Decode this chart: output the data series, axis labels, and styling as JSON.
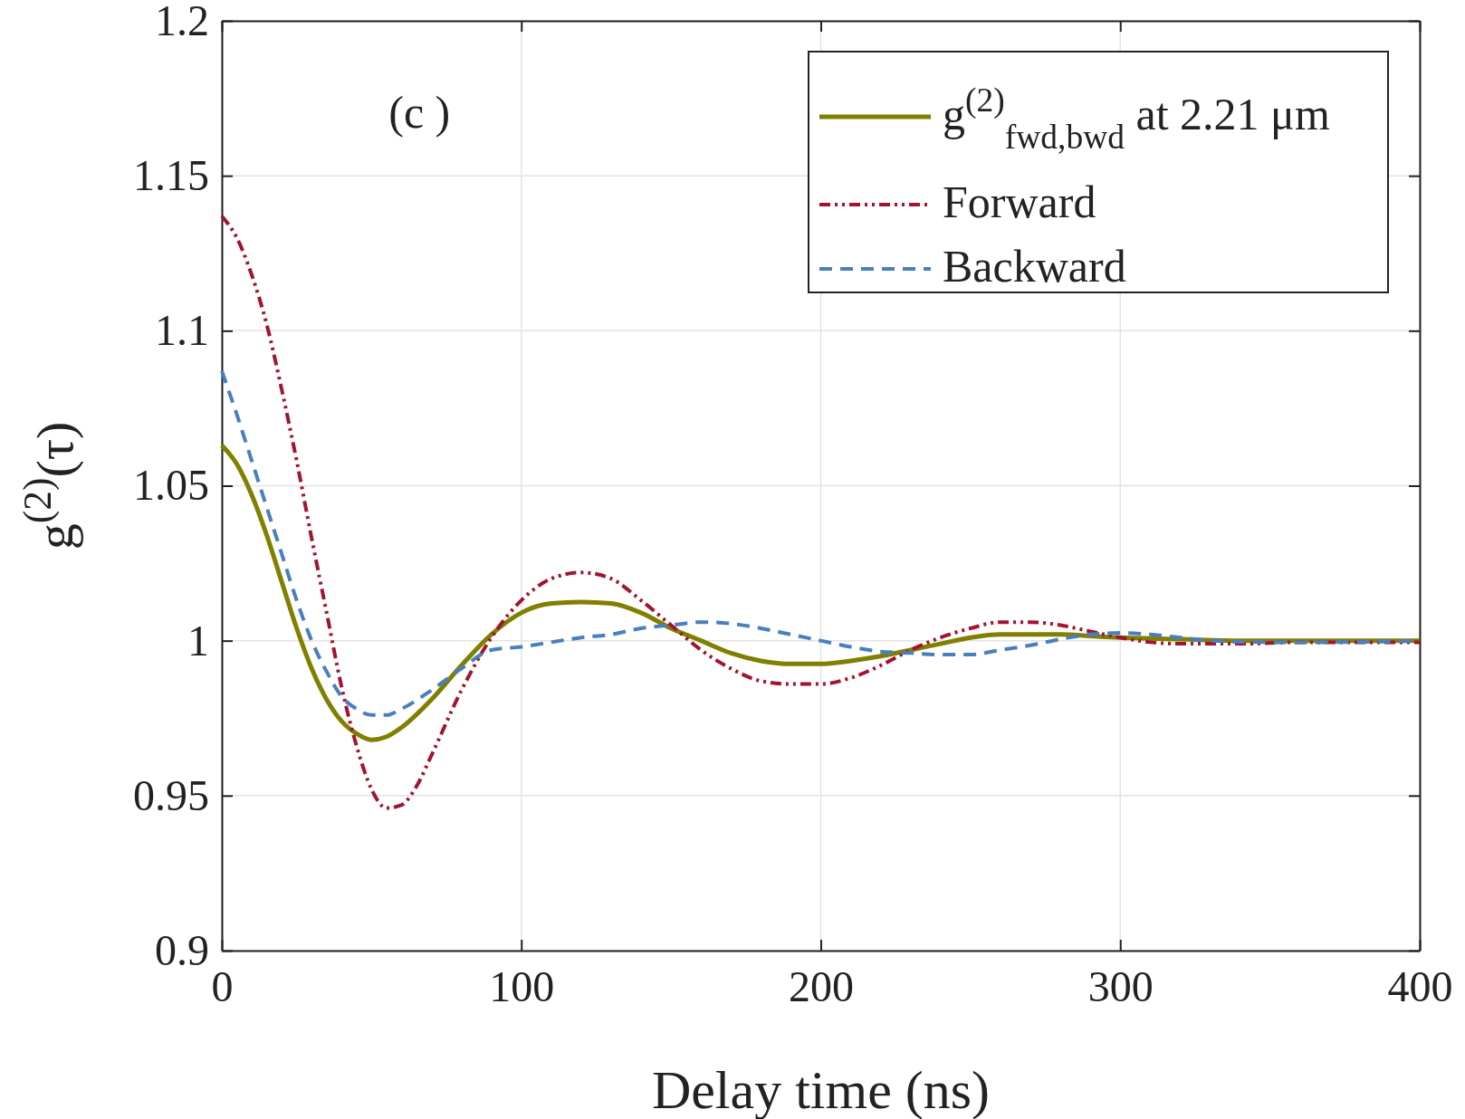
{
  "chart_data": {
    "type": "line",
    "xlabel": "Delay time (ns)",
    "ylabel": "g$^{(2)}$(τ)",
    "annotations": [
      "(c )"
    ],
    "xlim": [
      0,
      400
    ],
    "xticks": [
      0,
      100,
      200,
      300,
      400
    ],
    "ylim": [
      0.9,
      1.2
    ],
    "yticks": [
      0.9,
      0.95,
      1,
      1.05,
      1.1,
      1.15,
      1.2
    ],
    "grid": true,
    "legend": "top right",
    "series": [
      {
        "name": "g$^{(2)}$$_{fwd,bwd}$ at 2.21 μm",
        "color": "#808000",
        "line_style": "solid",
        "x": [
          0,
          5,
          10,
          15,
          20,
          25,
          30,
          35,
          40,
          45,
          50,
          55,
          60,
          70,
          80,
          90,
          100,
          110,
          120,
          130,
          140,
          150,
          160,
          170,
          180,
          190,
          200,
          210,
          220,
          230,
          240,
          250,
          260,
          270,
          280,
          290,
          300,
          320,
          340,
          370,
          400
        ],
        "values": [
          1.063,
          1.057,
          1.047,
          1.034,
          1.019,
          1.004,
          0.991,
          0.981,
          0.974,
          0.97,
          0.968,
          0.969,
          0.972,
          0.981,
          0.992,
          1.002,
          1.009,
          1.012,
          1.0125,
          1.012,
          1.009,
          1.004,
          1.0,
          0.996,
          0.9935,
          0.9925,
          0.9925,
          0.9935,
          0.995,
          0.997,
          0.999,
          1.001,
          1.002,
          1.002,
          1.002,
          1.0015,
          1.001,
          1.0005,
          1.0,
          1.0,
          1.0
        ]
      },
      {
        "name": "Forward",
        "color": "#a2142f",
        "line_style": "dashdot",
        "x": [
          0,
          5,
          10,
          15,
          20,
          25,
          30,
          35,
          40,
          45,
          50,
          55,
          60,
          65,
          70,
          80,
          90,
          100,
          110,
          120,
          130,
          140,
          150,
          160,
          170,
          180,
          190,
          200,
          210,
          220,
          230,
          240,
          250,
          260,
          270,
          280,
          290,
          300,
          310,
          320,
          340,
          360,
          400
        ],
        "values": [
          1.137,
          1.13,
          1.118,
          1.102,
          1.081,
          1.058,
          1.033,
          1.009,
          0.985,
          0.966,
          0.952,
          0.946,
          0.947,
          0.953,
          0.963,
          0.984,
          1.001,
          1.013,
          1.02,
          1.022,
          1.02,
          1.013,
          1.005,
          0.997,
          0.991,
          0.987,
          0.986,
          0.986,
          0.988,
          0.992,
          0.997,
          1.001,
          1.004,
          1.006,
          1.006,
          1.005,
          1.003,
          1.001,
          0.9995,
          0.999,
          0.999,
          0.9995,
          0.9995
        ]
      },
      {
        "name": "Backward",
        "color": "#4a7fbf",
        "line_style": "dashed",
        "x": [
          0,
          5,
          10,
          15,
          20,
          25,
          30,
          35,
          40,
          45,
          50,
          55,
          60,
          70,
          80,
          90,
          100,
          110,
          120,
          130,
          140,
          150,
          160,
          170,
          180,
          190,
          200,
          210,
          220,
          230,
          240,
          250,
          260,
          270,
          280,
          290,
          300,
          310,
          320,
          330,
          350,
          370,
          400
        ],
        "values": [
          1.087,
          1.073,
          1.058,
          1.043,
          1.028,
          1.013,
          1.0,
          0.99,
          0.982,
          0.978,
          0.976,
          0.976,
          0.978,
          0.984,
          0.991,
          0.997,
          0.998,
          0.9995,
          1.001,
          1.002,
          1.004,
          1.005,
          1.006,
          1.0055,
          1.004,
          1.002,
          1.0,
          0.998,
          0.9965,
          0.996,
          0.9955,
          0.9955,
          0.997,
          0.9985,
          1.0005,
          1.002,
          1.0025,
          1.002,
          1.001,
          1.0,
          0.9995,
          0.9995,
          1.0
        ]
      }
    ]
  }
}
